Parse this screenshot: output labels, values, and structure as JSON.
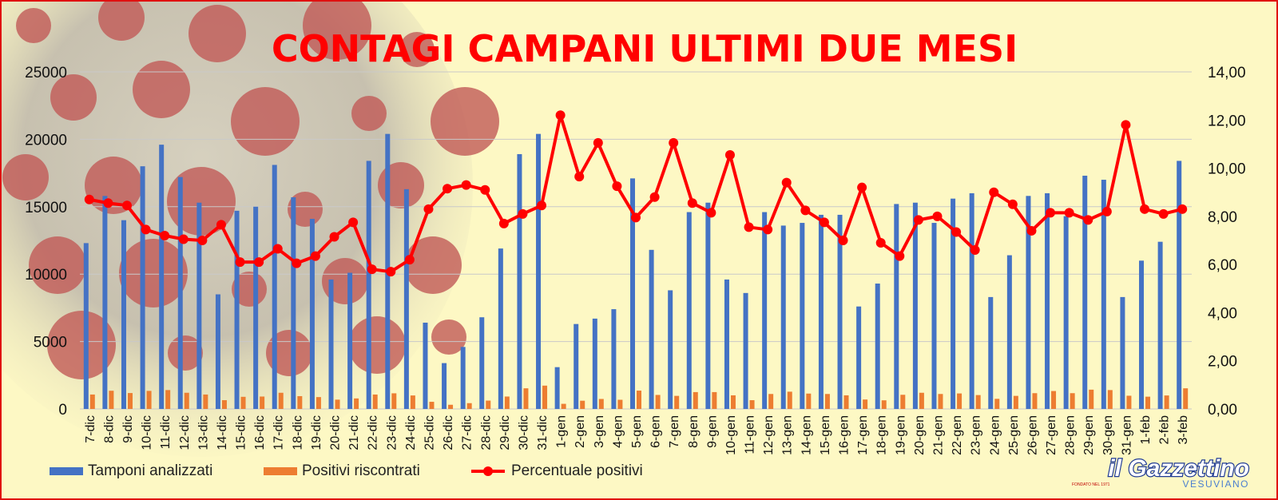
{
  "chart_data": {
    "type": "bar",
    "title": "CONTAGI CAMPANI ULTIMI DUE MESI",
    "categories": [
      "7-dic",
      "8-dic",
      "9-dic",
      "10-dic",
      "11-dic",
      "12-dic",
      "13-dic",
      "14-dic",
      "15-dic",
      "16-dic",
      "17-dic",
      "18-dic",
      "19-dic",
      "20-dic",
      "21-dic",
      "22-dic",
      "23-dic",
      "24-dic",
      "25-dic",
      "26-dic",
      "27-dic",
      "28-dic",
      "29-dic",
      "30-dic",
      "31-dic",
      "1-gen",
      "2-gen",
      "3-gen",
      "4-gen",
      "5-gen",
      "6-gen",
      "7-gen",
      "8-gen",
      "9-gen",
      "10-gen",
      "11-gen",
      "12-gen",
      "13-gen",
      "14-gen",
      "15-gen",
      "16-gen",
      "17-gen",
      "18-gen",
      "19-gen",
      "20-gen",
      "21-gen",
      "22-gen",
      "23-gen",
      "24-gen",
      "25-gen",
      "26-gen",
      "27-gen",
      "28-gen",
      "29-gen",
      "30-gen",
      "31-gen",
      "1-feb",
      "2-feb",
      "3-feb"
    ],
    "series": [
      {
        "name": "Tamponi analizzati",
        "axis": "left",
        "type": "bar",
        "color": "#4472c4",
        "values": [
          12300,
          15800,
          14000,
          18000,
          19600,
          17200,
          15300,
          8500,
          14700,
          15000,
          18100,
          15700,
          14100,
          9600,
          10100,
          18400,
          20400,
          16300,
          6400,
          3400,
          4600,
          6800,
          11900,
          18900,
          20400,
          3100,
          6300,
          6700,
          7400,
          17100,
          11800,
          8800,
          14600,
          15300,
          9600,
          8600,
          14600,
          13600,
          13800,
          14400,
          14400,
          7600,
          9300,
          15200,
          15300,
          13800,
          15600,
          16000,
          8300,
          11400,
          15800,
          16000,
          14300,
          17300,
          17000,
          8300,
          11000,
          12400,
          18400
        ]
      },
      {
        "name": "Positivi riscontrati",
        "axis": "left",
        "type": "bar",
        "color": "#ed7d31",
        "values": [
          1070,
          1350,
          1180,
          1340,
          1400,
          1200,
          1070,
          650,
          900,
          920,
          1200,
          950,
          880,
          690,
          780,
          1070,
          1160,
          1000,
          530,
          310,
          430,
          620,
          920,
          1530,
          1730,
          380,
          610,
          740,
          680,
          1360,
          1040,
          970,
          1250,
          1250,
          1010,
          650,
          1110,
          1280,
          1140,
          1110,
          1010,
          700,
          640,
          1050,
          1200,
          1110,
          1150,
          1030,
          750,
          970,
          1170,
          1330,
          1170,
          1430,
          1400,
          980,
          910,
          1000,
          1530
        ]
      },
      {
        "name": "Percentuale positivi",
        "axis": "right",
        "type": "line",
        "color": "#ff0000",
        "values": [
          8.7,
          8.55,
          8.45,
          7.45,
          7.2,
          7.05,
          7.0,
          7.65,
          6.1,
          6.1,
          6.65,
          6.05,
          6.35,
          7.15,
          7.75,
          5.8,
          5.7,
          6.2,
          8.3,
          9.15,
          9.3,
          9.1,
          7.7,
          8.1,
          8.45,
          12.2,
          9.65,
          11.05,
          9.25,
          7.95,
          8.8,
          11.05,
          8.55,
          8.15,
          10.55,
          7.55,
          7.45,
          9.4,
          8.25,
          7.75,
          7.0,
          9.2,
          6.9,
          6.35,
          7.85,
          8.0,
          7.35,
          6.6,
          9.0,
          8.5,
          7.4,
          8.15,
          8.15,
          7.85,
          8.2,
          11.8,
          8.3,
          8.1,
          8.3
        ]
      }
    ],
    "y_left": {
      "min": 0,
      "max": 25000,
      "ticks": [
        "0",
        "5000",
        "10000",
        "15000",
        "20000",
        "25000"
      ]
    },
    "y_right": {
      "min": 0,
      "max": 14,
      "ticks": [
        "0,00",
        "2,00",
        "4,00",
        "6,00",
        "8,00",
        "10,00",
        "12,00",
        "14,00"
      ]
    },
    "legend_position": "bottom-left",
    "grid": true
  },
  "logo": {
    "main": "il Gazzettino",
    "sub": "VESUVIANO",
    "note": "FONDATO NEL 1971"
  }
}
